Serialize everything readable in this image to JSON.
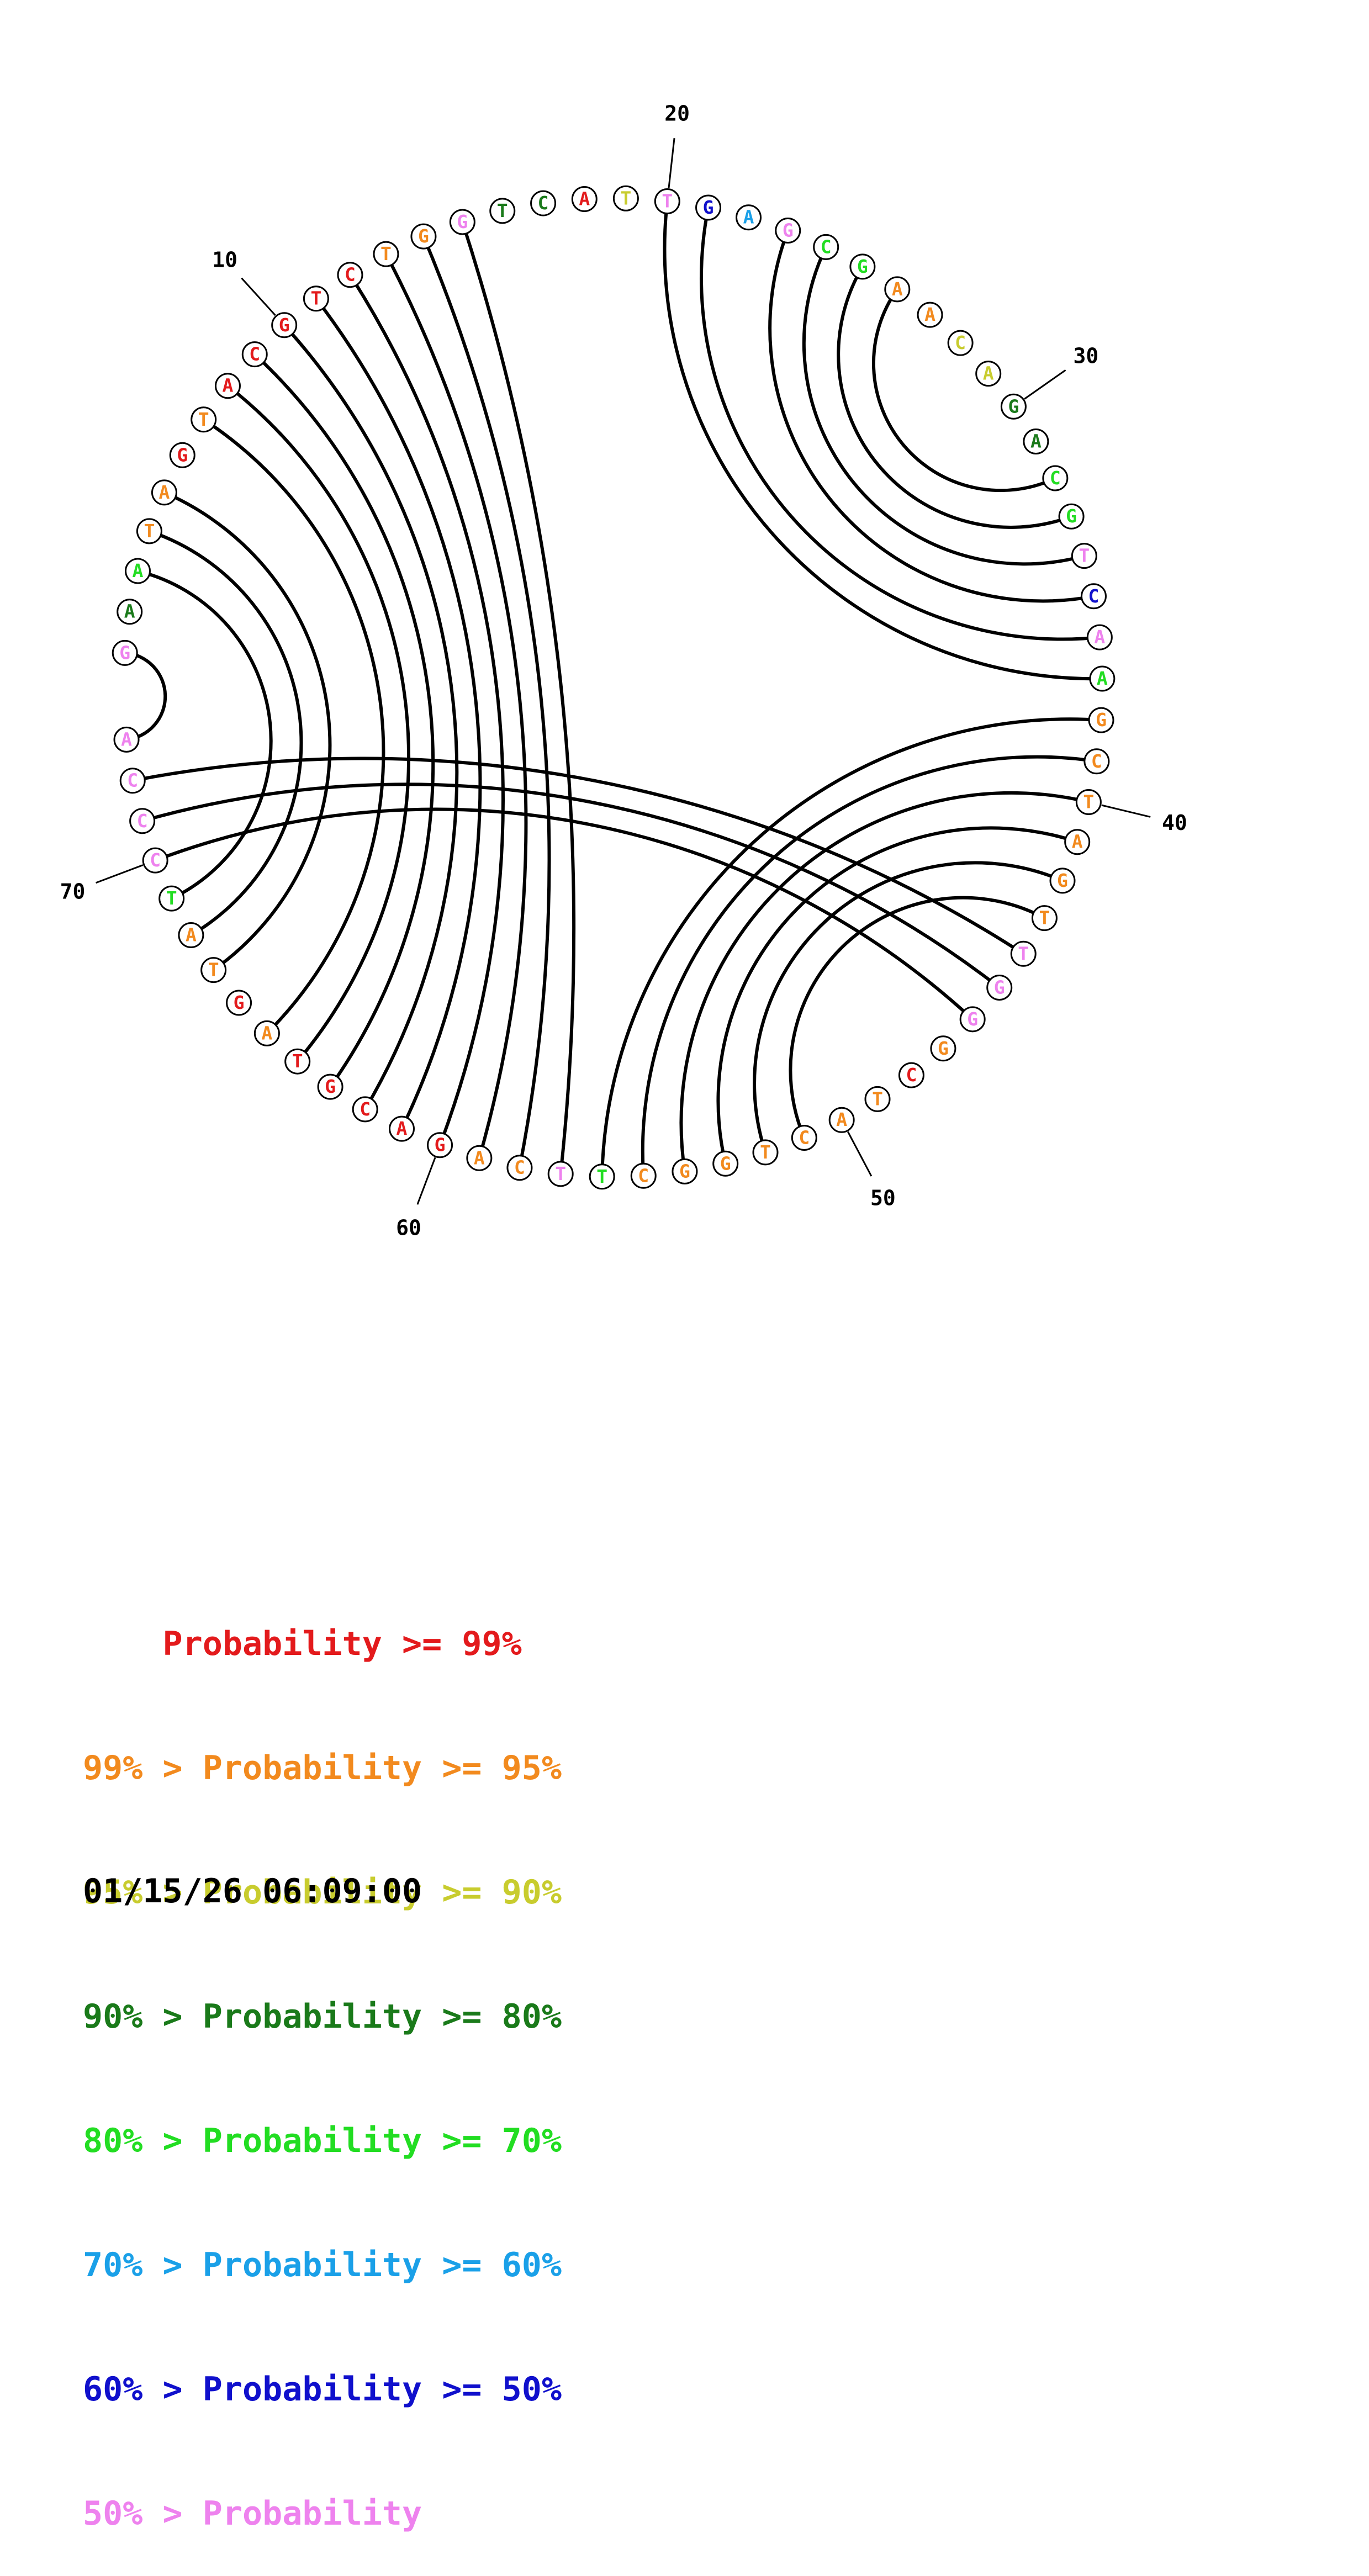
{
  "colors": {
    "c99": "#e31a1c",
    "c95": "#f28a1e",
    "c90": "#c8cc2e",
    "c80": "#1a7a1a",
    "c70": "#22dd22",
    "c60": "#1aa0e8",
    "c50": "#1010cc",
    "clow": "#ee82ee"
  },
  "sequence": [
    {
      "n": 1,
      "b": "G",
      "c": "clow"
    },
    {
      "n": 2,
      "b": "A",
      "c": "c80"
    },
    {
      "n": 3,
      "b": "A",
      "c": "c70"
    },
    {
      "n": 4,
      "b": "T",
      "c": "c95"
    },
    {
      "n": 5,
      "b": "A",
      "c": "c95"
    },
    {
      "n": 6,
      "b": "G",
      "c": "c99"
    },
    {
      "n": 7,
      "b": "T",
      "c": "c95"
    },
    {
      "n": 8,
      "b": "A",
      "c": "c99"
    },
    {
      "n": 9,
      "b": "C",
      "c": "c99"
    },
    {
      "n": 10,
      "b": "G",
      "c": "c99"
    },
    {
      "n": 11,
      "b": "T",
      "c": "c99"
    },
    {
      "n": 12,
      "b": "C",
      "c": "c99"
    },
    {
      "n": 13,
      "b": "T",
      "c": "c95"
    },
    {
      "n": 14,
      "b": "G",
      "c": "c95"
    },
    {
      "n": 15,
      "b": "G",
      "c": "clow"
    },
    {
      "n": 16,
      "b": "T",
      "c": "c80"
    },
    {
      "n": 17,
      "b": "C",
      "c": "c80"
    },
    {
      "n": 18,
      "b": "A",
      "c": "c99"
    },
    {
      "n": 19,
      "b": "T",
      "c": "c90"
    },
    {
      "n": 20,
      "b": "T",
      "c": "clow"
    },
    {
      "n": 21,
      "b": "G",
      "c": "c50"
    },
    {
      "n": 22,
      "b": "A",
      "c": "c60"
    },
    {
      "n": 23,
      "b": "G",
      "c": "clow"
    },
    {
      "n": 24,
      "b": "C",
      "c": "c70"
    },
    {
      "n": 25,
      "b": "G",
      "c": "c70"
    },
    {
      "n": 26,
      "b": "A",
      "c": "c95"
    },
    {
      "n": 27,
      "b": "A",
      "c": "c95"
    },
    {
      "n": 28,
      "b": "C",
      "c": "c90"
    },
    {
      "n": 29,
      "b": "A",
      "c": "c90"
    },
    {
      "n": 30,
      "b": "G",
      "c": "c80"
    },
    {
      "n": 31,
      "b": "A",
      "c": "c80"
    },
    {
      "n": 32,
      "b": "C",
      "c": "c70"
    },
    {
      "n": 33,
      "b": "G",
      "c": "c70"
    },
    {
      "n": 34,
      "b": "T",
      "c": "clow"
    },
    {
      "n": 35,
      "b": "C",
      "c": "c50"
    },
    {
      "n": 36,
      "b": "A",
      "c": "clow"
    },
    {
      "n": 37,
      "b": "A",
      "c": "c70"
    },
    {
      "n": 38,
      "b": "G",
      "c": "c95"
    },
    {
      "n": 39,
      "b": "C",
      "c": "c95"
    },
    {
      "n": 40,
      "b": "T",
      "c": "c95"
    },
    {
      "n": 41,
      "b": "A",
      "c": "c95"
    },
    {
      "n": 42,
      "b": "G",
      "c": "c95"
    },
    {
      "n": 43,
      "b": "T",
      "c": "c95"
    },
    {
      "n": 44,
      "b": "T",
      "c": "clow"
    },
    {
      "n": 45,
      "b": "G",
      "c": "clow"
    },
    {
      "n": 46,
      "b": "G",
      "c": "clow"
    },
    {
      "n": 47,
      "b": "G",
      "c": "c95"
    },
    {
      "n": 48,
      "b": "C",
      "c": "c99"
    },
    {
      "n": 49,
      "b": "T",
      "c": "c95"
    },
    {
      "n": 50,
      "b": "A",
      "c": "c95"
    },
    {
      "n": 51,
      "b": "C",
      "c": "c95"
    },
    {
      "n": 52,
      "b": "T",
      "c": "c95"
    },
    {
      "n": 53,
      "b": "G",
      "c": "c95"
    },
    {
      "n": 54,
      "b": "G",
      "c": "c95"
    },
    {
      "n": 55,
      "b": "C",
      "c": "c95"
    },
    {
      "n": 56,
      "b": "T",
      "c": "c70"
    },
    {
      "n": 57,
      "b": "T",
      "c": "clow"
    },
    {
      "n": 58,
      "b": "C",
      "c": "c95"
    },
    {
      "n": 59,
      "b": "A",
      "c": "c95"
    },
    {
      "n": 60,
      "b": "G",
      "c": "c99"
    },
    {
      "n": 61,
      "b": "A",
      "c": "c99"
    },
    {
      "n": 62,
      "b": "C",
      "c": "c99"
    },
    {
      "n": 63,
      "b": "G",
      "c": "c99"
    },
    {
      "n": 64,
      "b": "T",
      "c": "c99"
    },
    {
      "n": 65,
      "b": "A",
      "c": "c95"
    },
    {
      "n": 66,
      "b": "G",
      "c": "c99"
    },
    {
      "n": 67,
      "b": "T",
      "c": "c95"
    },
    {
      "n": 68,
      "b": "A",
      "c": "c95"
    },
    {
      "n": 69,
      "b": "T",
      "c": "c70"
    },
    {
      "n": 70,
      "b": "C",
      "c": "clow"
    },
    {
      "n": 71,
      "b": "C",
      "c": "clow"
    },
    {
      "n": 72,
      "b": "C",
      "c": "clow"
    },
    {
      "n": 73,
      "b": "A",
      "c": "clow"
    }
  ],
  "pairs": [
    [
      1,
      73
    ],
    [
      3,
      69
    ],
    [
      4,
      68
    ],
    [
      5,
      67
    ],
    [
      7,
      65
    ],
    [
      8,
      64
    ],
    [
      9,
      63
    ],
    [
      10,
      62
    ],
    [
      11,
      61
    ],
    [
      12,
      60
    ],
    [
      13,
      59
    ],
    [
      14,
      58
    ],
    [
      15,
      57
    ],
    [
      20,
      37
    ],
    [
      21,
      36
    ],
    [
      23,
      35
    ],
    [
      24,
      34
    ],
    [
      25,
      33
    ],
    [
      26,
      32
    ],
    [
      38,
      56
    ],
    [
      39,
      55
    ],
    [
      40,
      54
    ],
    [
      41,
      53
    ],
    [
      42,
      52
    ],
    [
      43,
      51
    ],
    [
      44,
      72
    ],
    [
      45,
      71
    ],
    [
      46,
      70
    ]
  ],
  "tick_labels": [
    {
      "n": 10,
      "label": "10"
    },
    {
      "n": 20,
      "label": "20"
    },
    {
      "n": 30,
      "label": "30"
    },
    {
      "n": 40,
      "label": "40"
    },
    {
      "n": 50,
      "label": "50"
    },
    {
      "n": 60,
      "label": "60"
    },
    {
      "n": 70,
      "label": "70"
    }
  ],
  "legend": [
    {
      "prefix": "    ",
      "text": "Probability >= 99%",
      "color": "c99"
    },
    {
      "prefix": "99% > ",
      "text": "Probability >= 95%",
      "color": "c95"
    },
    {
      "prefix": "95% > ",
      "text": "Probability >= 90%",
      "color": "c90"
    },
    {
      "prefix": "90% > ",
      "text": "Probability >= 80%",
      "color": "c80"
    },
    {
      "prefix": "80% > ",
      "text": "Probability >= 70%",
      "color": "c70"
    },
    {
      "prefix": "70% > ",
      "text": "Probability >= 60%",
      "color": "c60"
    },
    {
      "prefix": "60% > ",
      "text": "Probability >= 50%",
      "color": "c50"
    },
    {
      "prefix": "50% > ",
      "text": "Probability",
      "color": "clow"
    }
  ],
  "timestamp": "01/15/26 06:09:00"
}
